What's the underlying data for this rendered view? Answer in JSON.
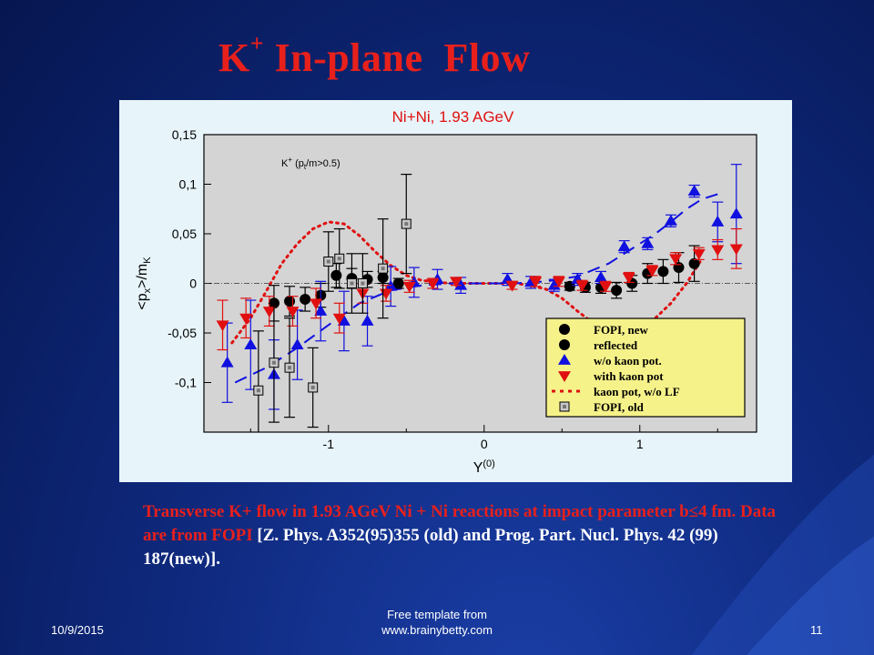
{
  "slide": {
    "title_main": "K",
    "title_sup": "+",
    "title_rest": " In-plane  Flow",
    "caption_red": "Transverse K+ flow in 1.93 AGeV Ni + Ni reactions at impact parameter b≤4 fm. Data are from FOPI ",
    "caption_white": "[Z. Phys. A352(95)355 (old) and Prog. Part. Nucl. Phys. 42 (99) 187(new)].",
    "footer_date": "10/9/2015",
    "footer_line1": "Free template from",
    "footer_line2": "www.brainybetty.com",
    "page_number": "11"
  },
  "chart_data": {
    "type": "scatter",
    "title": "Ni+Ni, 1.93 AGeV",
    "annotation": "K+ (pt/m>0.5)",
    "xlabel": "Y(0)",
    "ylabel": "<px>/mK",
    "xlim": [
      -1.8,
      1.75
    ],
    "ylim": [
      -0.15,
      0.15
    ],
    "x_ticks": [
      "-1",
      "0",
      "1"
    ],
    "y_ticks": [
      "0,15",
      "0,1",
      "0,05",
      "0",
      "-0,05",
      "-0,1"
    ],
    "legend_position": "bottom-right",
    "series": [
      {
        "name": "FOPI, new",
        "marker": "circle",
        "color": "#000000",
        "points": [
          [
            0.55,
            -0.003
          ],
          [
            0.65,
            -0.004
          ],
          [
            0.75,
            -0.004
          ],
          [
            0.85,
            -0.007
          ],
          [
            0.95,
            0.0
          ],
          [
            1.05,
            0.01
          ],
          [
            1.15,
            0.012
          ],
          [
            1.25,
            0.016
          ],
          [
            1.35,
            0.02
          ]
        ],
        "err": [
          0.004,
          0.005,
          0.006,
          0.008,
          0.008,
          0.01,
          0.012,
          0.015,
          0.018
        ]
      },
      {
        "name": "reflected",
        "marker": "circle",
        "color": "#000000",
        "points": [
          [
            -1.35,
            -0.02
          ],
          [
            -1.25,
            -0.018
          ],
          [
            -1.15,
            -0.016
          ],
          [
            -1.05,
            -0.012
          ],
          [
            -0.95,
            0.008
          ],
          [
            -0.85,
            0.005
          ],
          [
            -0.75,
            0.004
          ],
          [
            -0.65,
            0.006
          ],
          [
            -0.55,
            0.0
          ]
        ],
        "err": [
          0.018,
          0.015,
          0.012,
          0.012,
          0.012,
          0.01,
          0.008,
          0.006,
          0.005
        ]
      },
      {
        "name": "w/o kaon pot.",
        "marker": "triangle-up",
        "color": "#1010e0",
        "points": [
          [
            -1.65,
            -0.08
          ],
          [
            -1.5,
            -0.062
          ],
          [
            -1.35,
            -0.092
          ],
          [
            -1.2,
            -0.062
          ],
          [
            -1.05,
            -0.028
          ],
          [
            -0.9,
            -0.038
          ],
          [
            -0.75,
            -0.038
          ],
          [
            -0.6,
            -0.003
          ],
          [
            -0.45,
            0.001
          ],
          [
            -0.3,
            0.004
          ],
          [
            -0.15,
            -0.002
          ],
          [
            0.15,
            0.004
          ],
          [
            0.3,
            0.001
          ],
          [
            0.45,
            -0.002
          ],
          [
            0.6,
            0.004
          ],
          [
            0.75,
            0.006
          ],
          [
            0.9,
            0.037
          ],
          [
            1.05,
            0.04
          ],
          [
            1.2,
            0.063
          ],
          [
            1.35,
            0.093
          ],
          [
            1.5,
            0.062
          ],
          [
            1.62,
            0.07
          ]
        ],
        "err": [
          0.04,
          0.045,
          0.035,
          0.035,
          0.03,
          0.03,
          0.025,
          0.02,
          0.015,
          0.01,
          0.008,
          0.006,
          0.006,
          0.006,
          0.006,
          0.006,
          0.006,
          0.006,
          0.006,
          0.006,
          0.02,
          0.05
        ]
      },
      {
        "name": "with kaon pot",
        "marker": "triangle-down",
        "color": "#e01010",
        "points": [
          [
            -1.68,
            -0.042
          ],
          [
            -1.53,
            -0.035
          ],
          [
            -1.38,
            -0.028
          ],
          [
            -1.23,
            -0.028
          ],
          [
            -1.08,
            -0.02
          ],
          [
            -0.93,
            -0.035
          ],
          [
            -0.78,
            -0.01
          ],
          [
            -0.63,
            -0.01
          ],
          [
            -0.48,
            -0.003
          ],
          [
            -0.33,
            0.0
          ],
          [
            -0.18,
            0.002
          ],
          [
            0.18,
            -0.002
          ],
          [
            0.33,
            0.002
          ],
          [
            0.48,
            0.002
          ],
          [
            0.63,
            -0.002
          ],
          [
            0.78,
            -0.003
          ],
          [
            0.93,
            0.006
          ],
          [
            1.08,
            0.013
          ],
          [
            1.23,
            0.025
          ],
          [
            1.38,
            0.03
          ],
          [
            1.5,
            0.034
          ],
          [
            1.62,
            0.035
          ]
        ],
        "err": [
          0.025,
          0.02,
          0.015,
          0.015,
          0.015,
          0.015,
          0.01,
          0.008,
          0.006,
          0.005,
          0.004,
          0.004,
          0.005,
          0.005,
          0.005,
          0.005,
          0.005,
          0.005,
          0.006,
          0.006,
          0.01,
          0.02
        ]
      },
      {
        "name": "FOPI, old",
        "marker": "square",
        "color": "#808080",
        "points": [
          [
            -1.45,
            -0.108
          ],
          [
            -1.35,
            -0.08
          ],
          [
            -1.25,
            -0.085
          ],
          [
            -1.1,
            -0.105
          ],
          [
            -1.0,
            0.022
          ],
          [
            -0.93,
            0.025
          ],
          [
            -0.85,
            0.0
          ],
          [
            -0.78,
            0.0
          ],
          [
            -0.65,
            0.015
          ],
          [
            -0.5,
            0.06
          ]
        ],
        "err": [
          0.06,
          0.06,
          0.05,
          0.04,
          0.03,
          0.03,
          0.03,
          0.03,
          0.05,
          0.05
        ]
      },
      {
        "name": "kaon pot, w/o LF",
        "style": "dotted-line",
        "color": "#e01010",
        "x": [
          -1.62,
          -1.5,
          -1.4,
          -1.3,
          -1.2,
          -1.1,
          -1.0,
          -0.9,
          -0.8,
          -0.7,
          -0.6,
          -0.5,
          -0.4,
          -0.3,
          -0.2,
          -0.1,
          0.0,
          0.1,
          0.2,
          0.3,
          0.4,
          0.5,
          0.6,
          0.7,
          0.8,
          0.9,
          1.0,
          1.1,
          1.2,
          1.3,
          1.4
        ],
        "y": [
          -0.06,
          -0.035,
          -0.008,
          0.02,
          0.04,
          0.055,
          0.062,
          0.06,
          0.048,
          0.032,
          0.018,
          0.008,
          0.003,
          0.001,
          0.0,
          0.0,
          0.0,
          0.0,
          0.0,
          -0.002,
          -0.006,
          -0.015,
          -0.028,
          -0.04,
          -0.048,
          -0.05,
          -0.046,
          -0.035,
          -0.02,
          0.0,
          0.025
        ]
      },
      {
        "name": "no legend",
        "style": "dashed-line",
        "color": "#1010e0",
        "x": [
          -1.6,
          -1.4,
          -1.2,
          -1.0,
          -0.8,
          -0.6,
          -0.4,
          -0.2,
          0.0,
          0.2,
          0.4,
          0.6,
          0.8,
          0.9,
          1.0,
          1.1,
          1.2,
          1.3,
          1.4,
          1.5
        ],
        "y": [
          -0.1,
          -0.085,
          -0.065,
          -0.042,
          -0.02,
          -0.007,
          -0.002,
          0.0,
          0.0,
          0.0,
          0.002,
          0.007,
          0.02,
          0.03,
          0.04,
          0.05,
          0.062,
          0.075,
          0.085,
          0.09
        ]
      }
    ]
  }
}
